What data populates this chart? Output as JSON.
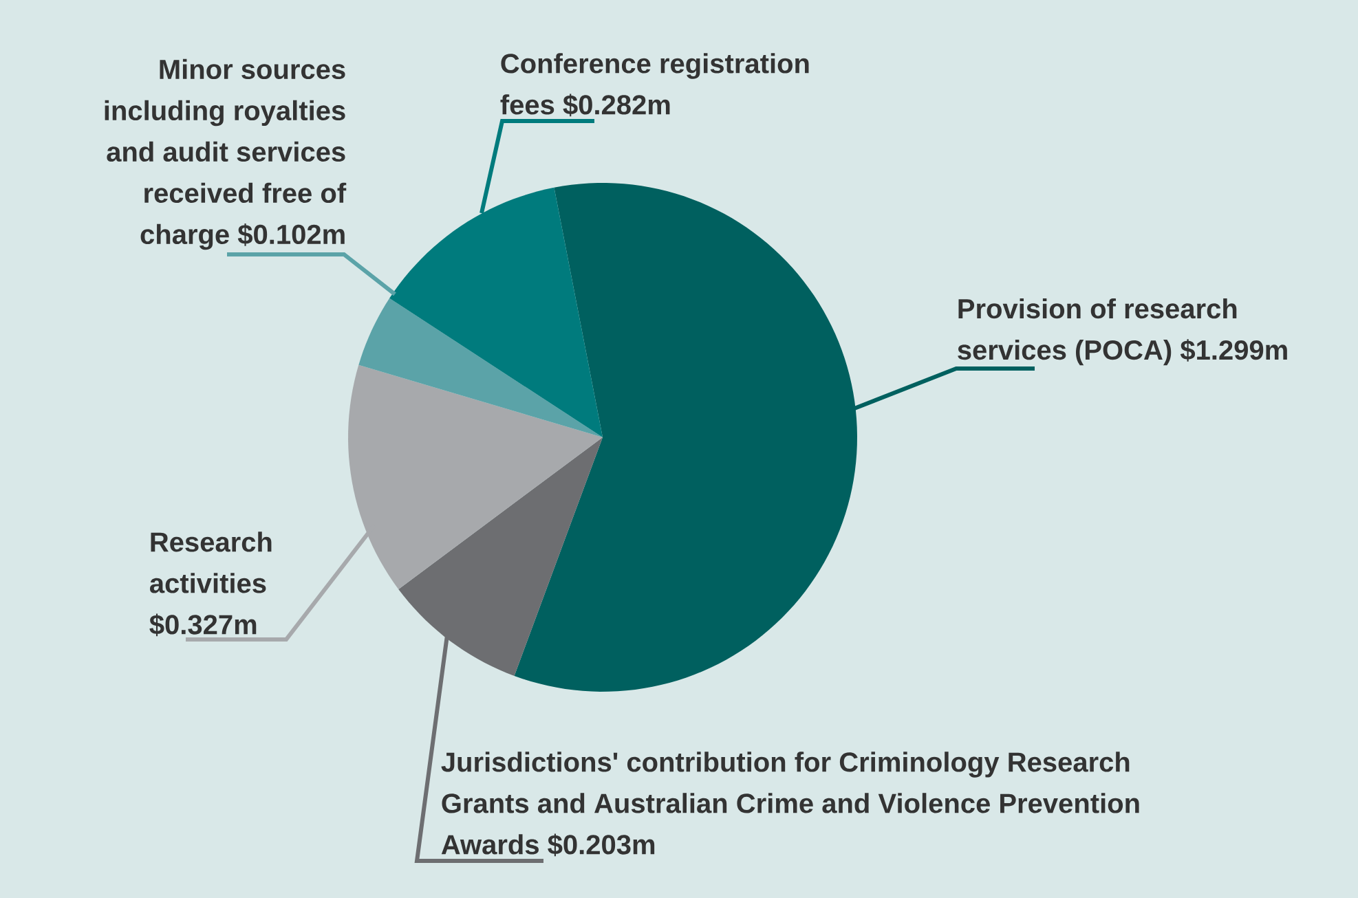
{
  "chart_data": {
    "type": "pie",
    "categories": [
      "Provision of research services (POCA)",
      "Jurisdictions' contribution for Criminology Research Grants and Australian Crime and Violence Prevention Awards",
      "Research activities",
      "Minor sources including royalties and audit services received free of charge",
      "Conference registration fees"
    ],
    "values": [
      1.299,
      0.203,
      0.327,
      0.102,
      0.282
    ],
    "value_labels": [
      "$1.299m",
      "$0.203m",
      "$0.327m",
      "$0.102m",
      "$0.282m"
    ],
    "colors": [
      "#00605f",
      "#6d6e71",
      "#a7a9ac",
      "#5ba3a8",
      "#007b7d"
    ]
  }
}
